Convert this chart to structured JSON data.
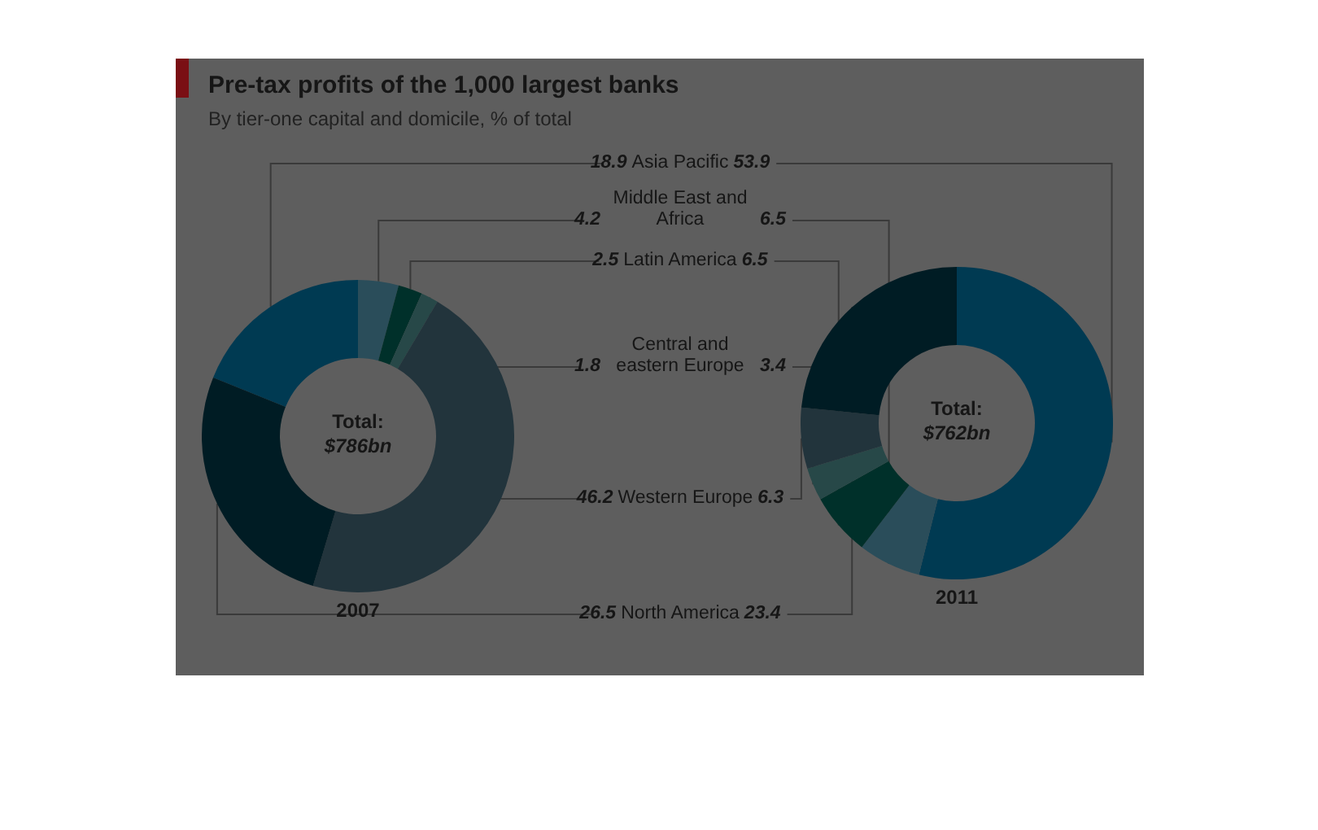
{
  "chart_data": [
    {
      "type": "donut",
      "title": "Pre-tax profits of the 1,000 largest banks",
      "subtitle": "By tier-one capital and domicile, % of total",
      "xlabel": "2007",
      "annotations": [
        "Total:",
        "$786bn"
      ],
      "categories": [
        "Asia Pacific",
        "Middle East and Africa",
        "Latin America",
        "Central and eastern Europe",
        "Western Europe",
        "North America"
      ],
      "values": [
        18.9,
        4.2,
        2.5,
        1.8,
        46.2,
        26.5
      ],
      "colors": [
        "#003a52",
        "#2a4d5a",
        "#00302a",
        "#274848",
        "#22343c",
        "#001c24"
      ],
      "data_labels": true,
      "legend": false
    },
    {
      "type": "donut",
      "xlabel": "2011",
      "annotations": [
        "Total:",
        "$762bn"
      ],
      "categories": [
        null,
        null,
        null,
        null,
        null,
        null
      ],
      "values": [
        53.9,
        6.5,
        6.5,
        3.4,
        6.3,
        23.4
      ],
      "colors": [
        "#003a52",
        "#2a4d5a",
        "#00302a",
        "#274848",
        "#22343c",
        "#001c24"
      ],
      "data_labels": true,
      "legend": false
    }
  ]
}
